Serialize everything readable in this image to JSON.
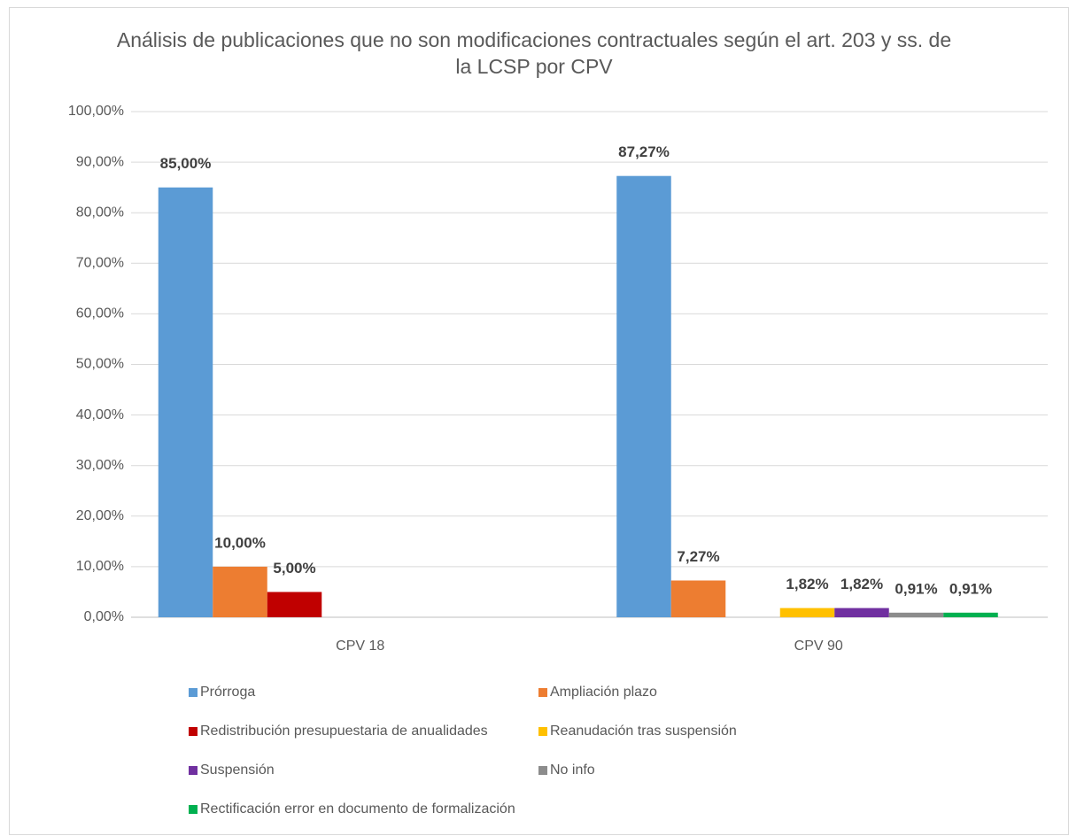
{
  "chart_data": {
    "type": "bar",
    "title": "Análisis de publicaciones que no son modificaciones contractuales según el art. 203 y ss. de la LCSP por CPV",
    "categories": [
      "CPV 18",
      "CPV 90"
    ],
    "series": [
      {
        "name": "Prórroga",
        "color": "#5b9bd5",
        "values": [
          85,
          87.27
        ],
        "value_labels": [
          "85,00%",
          "87,27%"
        ]
      },
      {
        "name": "Ampliación plazo",
        "color": "#ed7d31",
        "values": [
          10,
          7.27
        ],
        "value_labels": [
          "10,00%",
          "7,27%"
        ]
      },
      {
        "name": "Redistribución presupuestaria de anualidades",
        "color": "#c00000",
        "values": [
          5,
          null
        ],
        "value_labels": [
          "5,00%",
          null
        ]
      },
      {
        "name": "Reanudación tras suspensión",
        "color": "#ffc000",
        "values": [
          null,
          1.82
        ],
        "value_labels": [
          null,
          "1,82%"
        ]
      },
      {
        "name": "Suspensión",
        "color": "#7030a0",
        "values": [
          null,
          1.82
        ],
        "value_labels": [
          null,
          "1,82%"
        ]
      },
      {
        "name": "No info",
        "color": "#8c8c8c",
        "values": [
          null,
          0.91
        ],
        "value_labels": [
          null,
          "0,91%"
        ]
      },
      {
        "name": "Rectificación error en documento de formalización",
        "color": "#00b050",
        "values": [
          null,
          0.91
        ],
        "value_labels": [
          null,
          "0,91%"
        ]
      }
    ],
    "ylim": [
      0,
      100
    ],
    "yticks": [
      {
        "value": 0,
        "label": "0,00%"
      },
      {
        "value": 10,
        "label": "10,00%"
      },
      {
        "value": 20,
        "label": "20,00%"
      },
      {
        "value": 30,
        "label": "30,00%"
      },
      {
        "value": 40,
        "label": "40,00%"
      },
      {
        "value": 50,
        "label": "50,00%"
      },
      {
        "value": 60,
        "label": "60,00%"
      },
      {
        "value": 70,
        "label": "70,00%"
      },
      {
        "value": 80,
        "label": "80,00%"
      },
      {
        "value": 90,
        "label": "90,00%"
      },
      {
        "value": 100,
        "label": "100,00%"
      }
    ],
    "grid": true,
    "legend": "bottom"
  }
}
